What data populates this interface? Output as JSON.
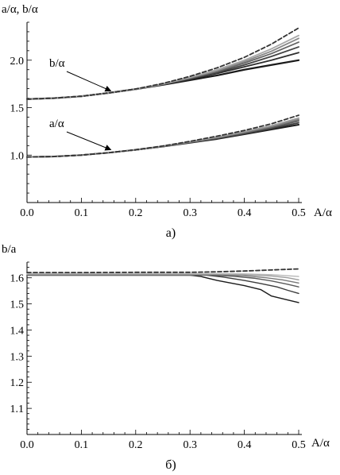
{
  "chart_data": [
    {
      "type": "line",
      "panel_label": "а)",
      "ylabel": "a/α, b/α",
      "xlabel": "A/α",
      "xlim": [
        0,
        0.5
      ],
      "ylim": [
        0.5,
        2.4
      ],
      "xticks": [
        0.0,
        0.1,
        0.2,
        0.3,
        0.4,
        0.5
      ],
      "xtick_labels": [
        "0.0",
        "0.1",
        "0.2",
        "0.3",
        "0.4",
        "0.5"
      ],
      "yticks": [
        1.0,
        1.5,
        2.0
      ],
      "ytick_labels": [
        "1.0",
        "1.5",
        "2.0"
      ],
      "grid": false,
      "annotations": [
        {
          "text": "b/α",
          "x": 0.16,
          "y": 1.66
        },
        {
          "text": "a/α",
          "x": 0.16,
          "y": 1.04
        }
      ],
      "series": [
        {
          "group": "b",
          "shade": "#1a1a1a",
          "width": 2.2,
          "dash": "",
          "x": [
            0,
            0.05,
            0.1,
            0.15,
            0.2,
            0.25,
            0.3,
            0.35,
            0.4,
            0.45,
            0.5
          ],
          "y": [
            1.59,
            1.6,
            1.62,
            1.655,
            1.695,
            1.74,
            1.79,
            1.84,
            1.9,
            1.95,
            2.0
          ]
        },
        {
          "group": "b",
          "shade": "#2e2e2e",
          "width": 1.8,
          "dash": "",
          "x": [
            0,
            0.05,
            0.1,
            0.15,
            0.2,
            0.25,
            0.3,
            0.35,
            0.4,
            0.45,
            0.5
          ],
          "y": [
            1.59,
            1.6,
            1.62,
            1.655,
            1.695,
            1.745,
            1.8,
            1.86,
            1.93,
            2.0,
            2.08
          ]
        },
        {
          "group": "b",
          "shade": "#444444",
          "width": 1.8,
          "dash": "",
          "x": [
            0,
            0.05,
            0.1,
            0.15,
            0.2,
            0.25,
            0.3,
            0.35,
            0.4,
            0.45,
            0.5
          ],
          "y": [
            1.59,
            1.6,
            1.62,
            1.655,
            1.695,
            1.745,
            1.805,
            1.87,
            1.95,
            2.04,
            2.14
          ]
        },
        {
          "group": "b",
          "shade": "#666666",
          "width": 1.8,
          "dash": "",
          "x": [
            0,
            0.05,
            0.1,
            0.15,
            0.2,
            0.25,
            0.3,
            0.35,
            0.4,
            0.45,
            0.5
          ],
          "y": [
            1.59,
            1.6,
            1.62,
            1.655,
            1.695,
            1.745,
            1.81,
            1.88,
            1.97,
            2.07,
            2.19
          ]
        },
        {
          "group": "b",
          "shade": "#888888",
          "width": 1.8,
          "dash": "",
          "x": [
            0,
            0.05,
            0.1,
            0.15,
            0.2,
            0.25,
            0.3,
            0.35,
            0.4,
            0.45,
            0.5
          ],
          "y": [
            1.59,
            1.6,
            1.62,
            1.655,
            1.695,
            1.748,
            1.815,
            1.89,
            1.985,
            2.095,
            2.23
          ]
        },
        {
          "group": "b",
          "shade": "#a8a8a8",
          "width": 1.8,
          "dash": "",
          "x": [
            0,
            0.05,
            0.1,
            0.15,
            0.2,
            0.25,
            0.3,
            0.35,
            0.4,
            0.45,
            0.5
          ],
          "y": [
            1.59,
            1.6,
            1.62,
            1.655,
            1.695,
            1.75,
            1.82,
            1.9,
            2.0,
            2.12,
            2.26
          ]
        },
        {
          "group": "b",
          "shade": "#333333",
          "width": 1.8,
          "dash": "5,3",
          "x": [
            0,
            0.05,
            0.1,
            0.15,
            0.2,
            0.25,
            0.3,
            0.35,
            0.4,
            0.45,
            0.5
          ],
          "y": [
            1.59,
            1.6,
            1.62,
            1.655,
            1.697,
            1.755,
            1.83,
            1.92,
            2.03,
            2.17,
            2.34
          ]
        },
        {
          "group": "a",
          "shade": "#1a1a1a",
          "width": 2.0,
          "dash": "",
          "x": [
            0,
            0.05,
            0.1,
            0.15,
            0.2,
            0.25,
            0.3,
            0.35,
            0.4,
            0.45,
            0.5
          ],
          "y": [
            0.98,
            0.985,
            1.0,
            1.025,
            1.055,
            1.09,
            1.13,
            1.17,
            1.22,
            1.27,
            1.32
          ]
        },
        {
          "group": "a",
          "shade": "#3c3c3c",
          "width": 1.8,
          "dash": "",
          "x": [
            0,
            0.05,
            0.1,
            0.15,
            0.2,
            0.25,
            0.3,
            0.35,
            0.4,
            0.45,
            0.5
          ],
          "y": [
            0.98,
            0.985,
            1.0,
            1.025,
            1.055,
            1.09,
            1.132,
            1.175,
            1.225,
            1.28,
            1.34
          ]
        },
        {
          "group": "a",
          "shade": "#5a5a5a",
          "width": 1.8,
          "dash": "",
          "x": [
            0,
            0.05,
            0.1,
            0.15,
            0.2,
            0.25,
            0.3,
            0.35,
            0.4,
            0.45,
            0.5
          ],
          "y": [
            0.98,
            0.985,
            1.0,
            1.025,
            1.055,
            1.092,
            1.135,
            1.18,
            1.232,
            1.29,
            1.36
          ]
        },
        {
          "group": "a",
          "shade": "#7a7a7a",
          "width": 1.8,
          "dash": "",
          "x": [
            0,
            0.05,
            0.1,
            0.15,
            0.2,
            0.25,
            0.3,
            0.35,
            0.4,
            0.45,
            0.5
          ],
          "y": [
            0.98,
            0.985,
            1.0,
            1.025,
            1.056,
            1.093,
            1.137,
            1.185,
            1.24,
            1.3,
            1.375
          ]
        },
        {
          "group": "a",
          "shade": "#9c9c9c",
          "width": 1.8,
          "dash": "",
          "x": [
            0,
            0.05,
            0.1,
            0.15,
            0.2,
            0.25,
            0.3,
            0.35,
            0.4,
            0.45,
            0.5
          ],
          "y": [
            0.98,
            0.985,
            1.0,
            1.025,
            1.056,
            1.094,
            1.14,
            1.19,
            1.247,
            1.31,
            1.39
          ]
        },
        {
          "group": "a",
          "shade": "#333333",
          "width": 1.8,
          "dash": "5,3",
          "x": [
            0,
            0.05,
            0.1,
            0.15,
            0.2,
            0.25,
            0.3,
            0.35,
            0.4,
            0.45,
            0.5
          ],
          "y": [
            0.98,
            0.985,
            1.0,
            1.025,
            1.057,
            1.096,
            1.145,
            1.2,
            1.26,
            1.33,
            1.42
          ]
        }
      ]
    },
    {
      "type": "line",
      "panel_label": "б)",
      "ylabel": "b/a",
      "xlabel": "A/α",
      "xlim": [
        0,
        0.5
      ],
      "ylim": [
        1.0,
        1.66
      ],
      "xticks": [
        0.0,
        0.1,
        0.2,
        0.3,
        0.4,
        0.5
      ],
      "xtick_labels": [
        "0.0",
        "0.1",
        "0.2",
        "0.3",
        "0.4",
        "0.5"
      ],
      "yticks": [
        1.1,
        1.2,
        1.3,
        1.4,
        1.5,
        1.6
      ],
      "ytick_labels": [
        "1.1",
        "1.2",
        "1.3",
        "1.4",
        "1.5",
        "1.6"
      ],
      "grid": false,
      "series": [
        {
          "shade": "#1a1a1a",
          "width": 1.4,
          "dash": "",
          "x": [
            0,
            0.1,
            0.2,
            0.3,
            0.32,
            0.35,
            0.4,
            0.43,
            0.45,
            0.48,
            0.5
          ],
          "y": [
            1.61,
            1.61,
            1.61,
            1.61,
            1.605,
            1.59,
            1.57,
            1.555,
            1.53,
            1.515,
            1.505
          ]
        },
        {
          "shade": "#3c3c3c",
          "width": 1.4,
          "dash": "",
          "x": [
            0,
            0.1,
            0.2,
            0.3,
            0.33,
            0.36,
            0.4,
            0.43,
            0.46,
            0.48,
            0.5
          ],
          "y": [
            1.61,
            1.61,
            1.61,
            1.61,
            1.61,
            1.603,
            1.59,
            1.578,
            1.565,
            1.552,
            1.54
          ]
        },
        {
          "shade": "#5a5a5a",
          "width": 1.4,
          "dash": "",
          "x": [
            0,
            0.1,
            0.2,
            0.3,
            0.34,
            0.38,
            0.42,
            0.45,
            0.48,
            0.5
          ],
          "y": [
            1.61,
            1.61,
            1.61,
            1.61,
            1.61,
            1.606,
            1.598,
            1.588,
            1.575,
            1.565
          ]
        },
        {
          "shade": "#7a7a7a",
          "width": 1.4,
          "dash": "",
          "x": [
            0,
            0.1,
            0.2,
            0.3,
            0.35,
            0.4,
            0.44,
            0.47,
            0.5
          ],
          "y": [
            1.612,
            1.612,
            1.612,
            1.612,
            1.612,
            1.608,
            1.6,
            1.592,
            1.58
          ]
        },
        {
          "shade": "#9c9c9c",
          "width": 1.4,
          "dash": "",
          "x": [
            0,
            0.1,
            0.2,
            0.3,
            0.35,
            0.4,
            0.45,
            0.48,
            0.5
          ],
          "y": [
            1.614,
            1.614,
            1.614,
            1.614,
            1.614,
            1.612,
            1.607,
            1.6,
            1.592
          ]
        },
        {
          "shade": "#b8b8b8",
          "width": 1.4,
          "dash": "",
          "x": [
            0,
            0.1,
            0.2,
            0.3,
            0.35,
            0.4,
            0.45,
            0.5
          ],
          "y": [
            1.616,
            1.616,
            1.616,
            1.616,
            1.616,
            1.615,
            1.612,
            1.605
          ]
        },
        {
          "shade": "#333333",
          "width": 1.8,
          "dash": "5,3",
          "x": [
            0,
            0.1,
            0.2,
            0.3,
            0.35,
            0.4,
            0.45,
            0.5
          ],
          "y": [
            1.62,
            1.62,
            1.621,
            1.621,
            1.623,
            1.626,
            1.63,
            1.634
          ]
        }
      ]
    }
  ]
}
